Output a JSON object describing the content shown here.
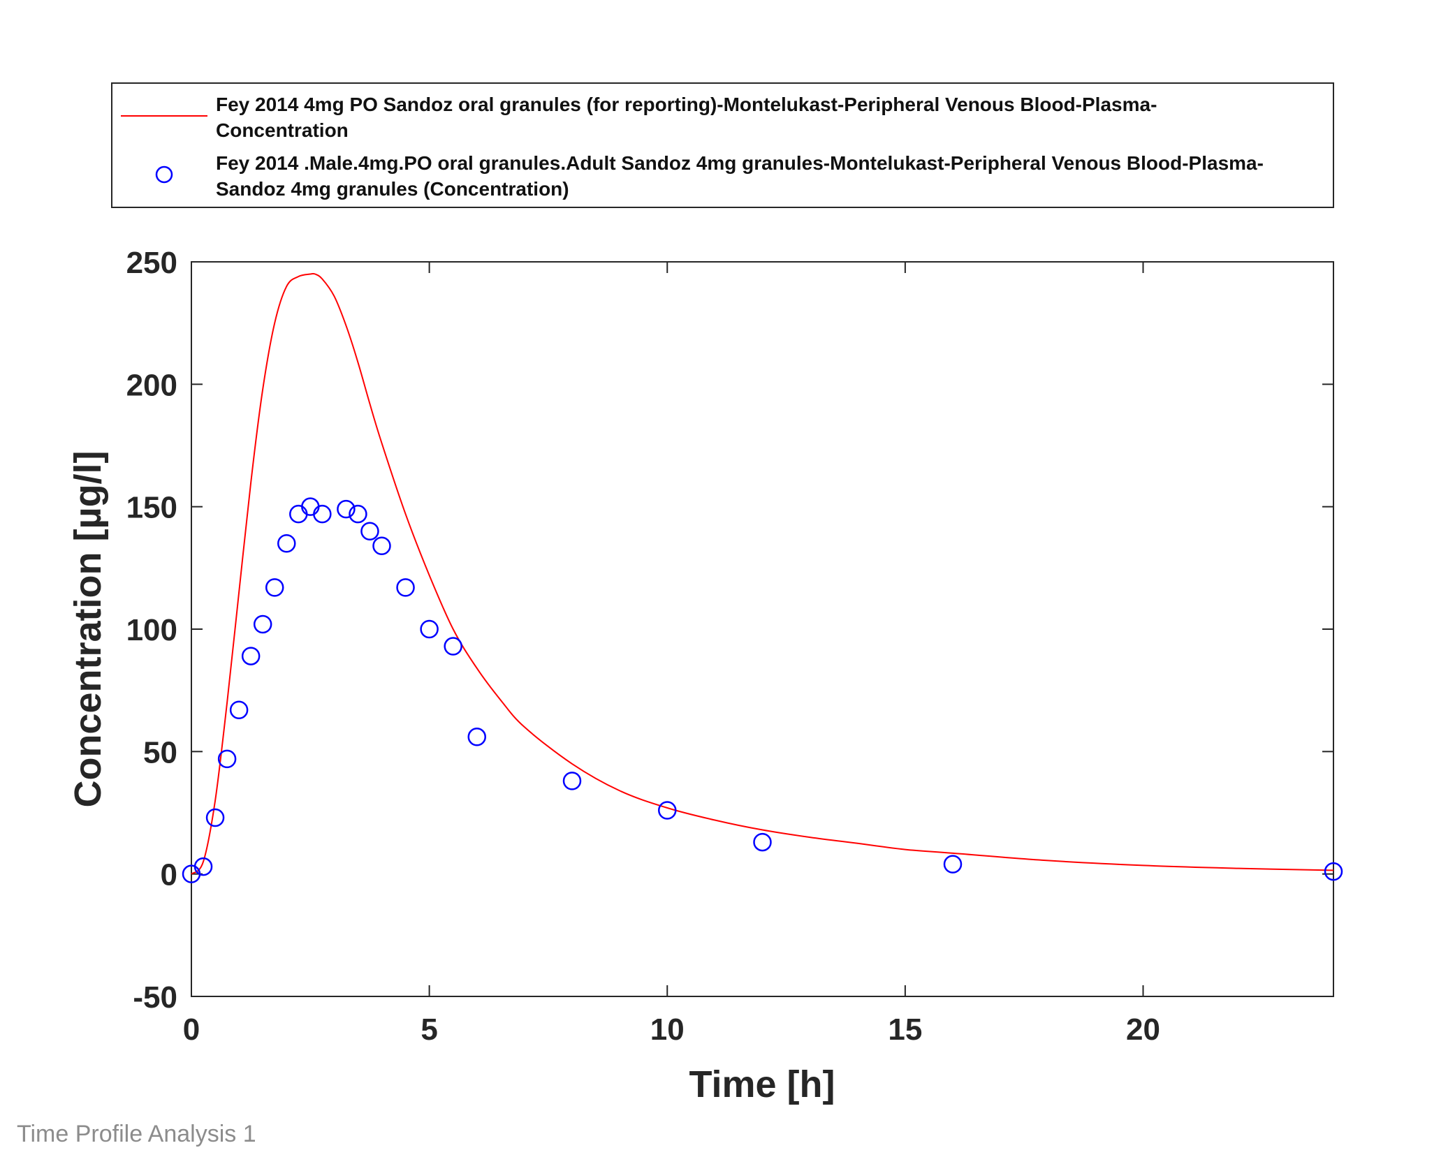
{
  "footer": "Time Profile Analysis 1",
  "colors": {
    "simulated": "#ff0000",
    "observed": "#0000ff",
    "axis": "#262626"
  },
  "chart_data": {
    "type": "line",
    "xlabel": "Time [h]",
    "ylabel": "Concentration [µg/l]",
    "xlim": [
      0,
      24
    ],
    "ylim": [
      -50,
      250
    ],
    "xticks": [
      0,
      5,
      10,
      15,
      20
    ],
    "yticks": [
      -50,
      0,
      50,
      100,
      150,
      200,
      250
    ],
    "grid": false,
    "legend_position": "top (outside plot, boxed)",
    "legend": [
      {
        "lines": [
          "Fey 2014 4mg PO Sandoz oral granules (for reporting)-Montelukast-Peripheral Venous Blood-Plasma-",
          "Concentration"
        ],
        "marker": "line",
        "color": "#ff0000"
      },
      {
        "lines": [
          "Fey 2014 .Male.4mg.PO oral granules.Adult Sandoz  4mg granules-Montelukast-Peripheral Venous Blood-Plasma-",
          "Sandoz 4mg granules (Concentration)"
        ],
        "marker": "circle",
        "color": "#0000ff"
      }
    ],
    "series": [
      {
        "style": "line",
        "color": "#ff0000",
        "x": [
          0,
          0.25,
          0.5,
          0.75,
          1.0,
          1.25,
          1.5,
          1.75,
          2.0,
          2.25,
          2.5,
          2.6,
          2.75,
          3.0,
          3.25,
          3.5,
          3.75,
          4.0,
          4.5,
          5.0,
          5.5,
          6.0,
          6.5,
          7.0,
          8.0,
          9.0,
          10.0,
          11.0,
          12.0,
          13.0,
          14.0,
          15.0,
          16.0,
          18.0,
          20.0,
          22.0,
          24.0
        ],
        "y": [
          0,
          5,
          30,
          70,
          115,
          160,
          198,
          225,
          240,
          244,
          245,
          245,
          243,
          236,
          224,
          209,
          192,
          176,
          147,
          122,
          100,
          84,
          71,
          60,
          45,
          34,
          27,
          22,
          18,
          15,
          12.5,
          10,
          8.5,
          5.5,
          3.5,
          2.3,
          1.5
        ]
      },
      {
        "style": "markers",
        "marker": "circle",
        "color": "#0000ff",
        "x": [
          0,
          0.25,
          0.5,
          0.75,
          1.0,
          1.25,
          1.5,
          1.75,
          2.0,
          2.25,
          2.5,
          2.75,
          3.25,
          3.5,
          3.75,
          4.0,
          4.5,
          5.0,
          5.5,
          6.0,
          8.0,
          10.0,
          12.0,
          16.0,
          24.0
        ],
        "y": [
          0,
          3,
          23,
          47,
          67,
          89,
          102,
          117,
          135,
          147,
          150,
          147,
          149,
          147,
          140,
          134,
          117,
          100,
          93,
          56,
          38,
          26,
          13,
          4,
          1
        ]
      }
    ]
  }
}
